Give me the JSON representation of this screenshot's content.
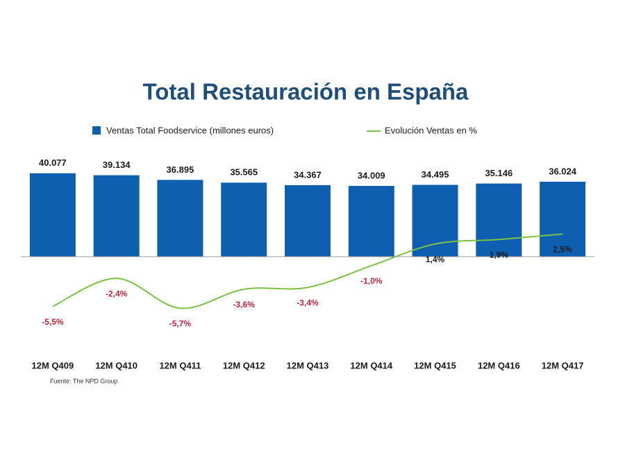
{
  "chart_data": {
    "type": "bar-line",
    "title": "Total Restauración en España",
    "categories": [
      "12M Q409",
      "12M Q410",
      "12M Q411",
      "12M Q412",
      "12M Q413",
      "12M Q414",
      "12M Q415",
      "12M Q416",
      "12M Q417"
    ],
    "series": [
      {
        "name": "Ventas Total Foodservice (millones euros)",
        "type": "bar",
        "color": "#0f5fb0",
        "values": [
          40077,
          39134,
          36895,
          35565,
          34367,
          34009,
          34495,
          35146,
          36024
        ],
        "value_labels": [
          "40.077",
          "39.134",
          "36.895",
          "35.565",
          "34.367",
          "34.009",
          "34.495",
          "35.146",
          "36.024"
        ]
      },
      {
        "name": "Evolución Ventas en %",
        "type": "line",
        "axis": "y2",
        "color": "#7ac143",
        "values": [
          -5.5,
          -2.4,
          -5.7,
          -3.6,
          -3.4,
          -1.0,
          1.4,
          1.9,
          2.5
        ],
        "value_labels": [
          "-5,5%",
          "-2,4%",
          "-5,7%",
          "-3,6%",
          "-3,4%",
          "-1,0%",
          "1,4%",
          "1,9%",
          "2,5%"
        ]
      }
    ],
    "ylim": [
      -50000,
      50000
    ],
    "y2lim": [
      -11.5,
      11.5
    ],
    "source": "Fuente: The NPD Group"
  }
}
